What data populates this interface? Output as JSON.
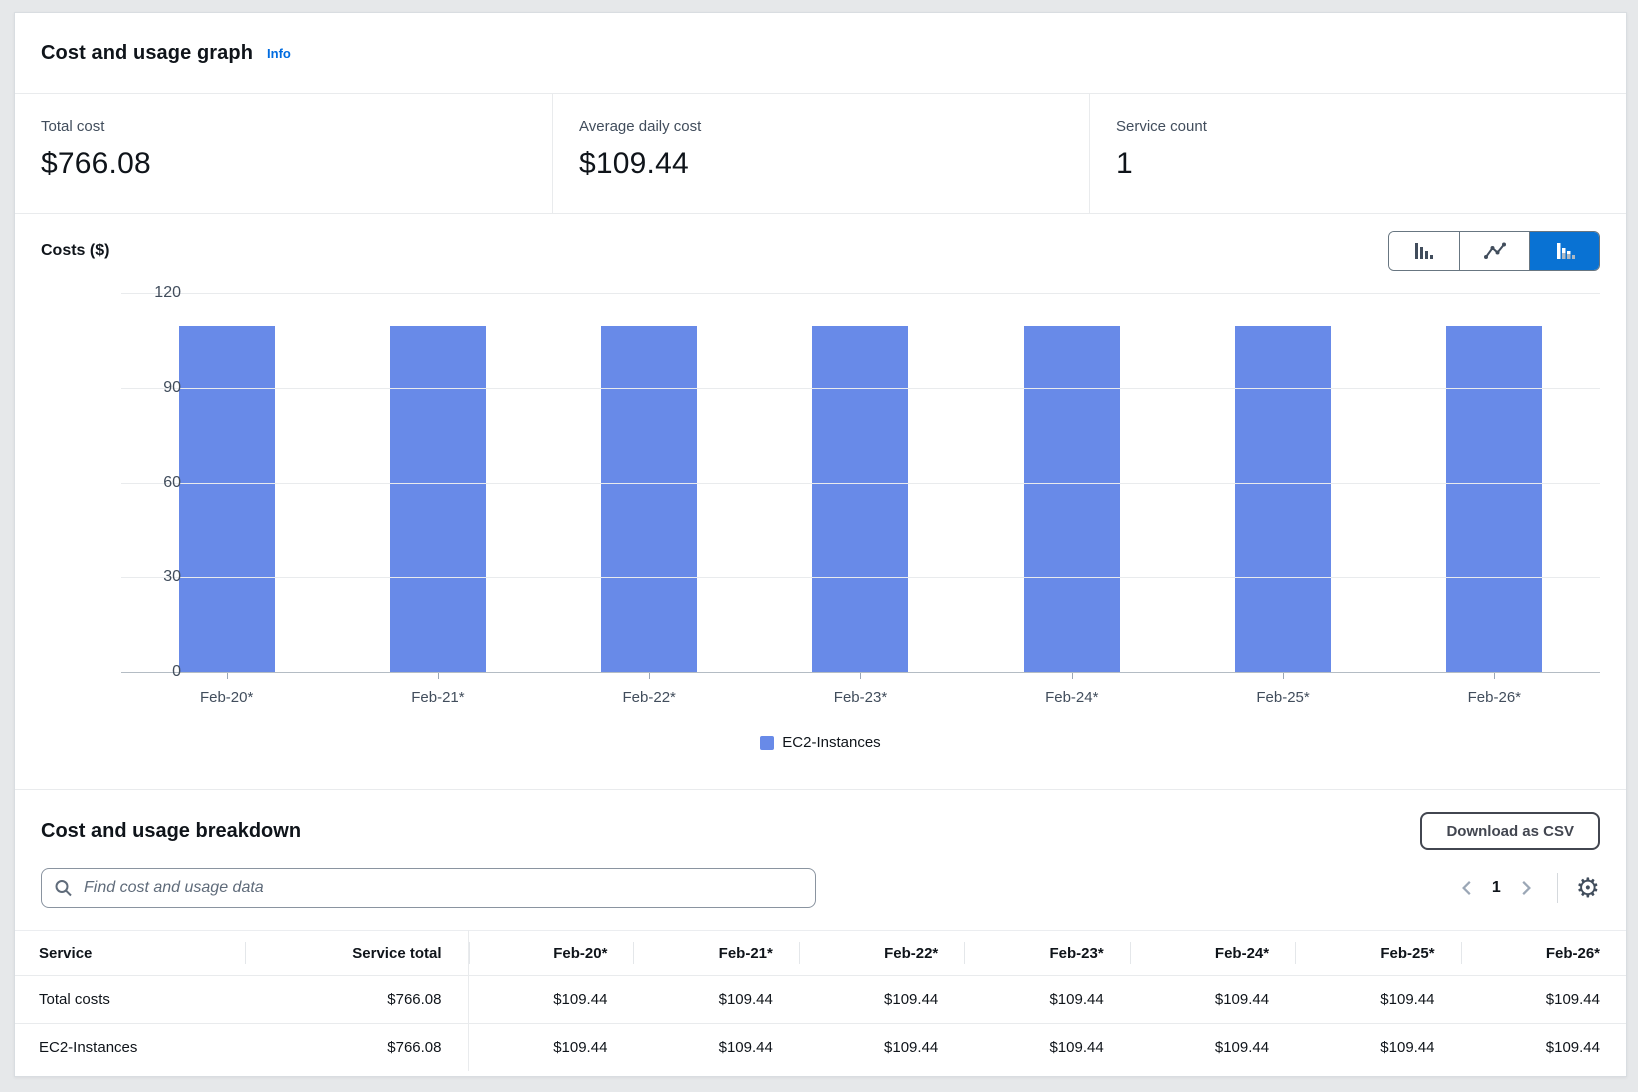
{
  "summary": {
    "title": "Cost and usage graph",
    "info_label": "Info",
    "stats": [
      {
        "label": "Total cost",
        "value": "$766.08"
      },
      {
        "label": "Average daily cost",
        "value": "$109.44"
      },
      {
        "label": "Service count",
        "value": "1"
      }
    ]
  },
  "chart_data": {
    "type": "bar",
    "title": "Costs ($)",
    "categories": [
      "Feb-20*",
      "Feb-21*",
      "Feb-22*",
      "Feb-23*",
      "Feb-24*",
      "Feb-25*",
      "Feb-26*"
    ],
    "series": [
      {
        "name": "EC2-Instances",
        "color": "#688AE8",
        "values": [
          109.44,
          109.44,
          109.44,
          109.44,
          109.44,
          109.44,
          109.44
        ]
      }
    ],
    "ylabel": "Costs ($)",
    "ylim": [
      0,
      120
    ],
    "yticks": [
      120,
      90,
      60,
      30,
      0
    ],
    "grid": true,
    "legend_position": "bottom"
  },
  "chart_toggle": {
    "options": [
      "bar-chart",
      "line-chart",
      "stacked-bar-chart"
    ],
    "selected": "stacked-bar-chart",
    "selected_color": "#0972d3"
  },
  "breakdown": {
    "title": "Cost and usage breakdown",
    "download_label": "Download as CSV",
    "search_placeholder": "Find cost and usage data",
    "pagination": {
      "current_page": "1"
    },
    "table": {
      "columns": [
        "Service",
        "Service total",
        "Feb-20*",
        "Feb-21*",
        "Feb-22*",
        "Feb-23*",
        "Feb-24*",
        "Feb-25*",
        "Feb-26*"
      ],
      "rows": [
        [
          "Total costs",
          "$766.08",
          "$109.44",
          "$109.44",
          "$109.44",
          "$109.44",
          "$109.44",
          "$109.44",
          "$109.44"
        ],
        [
          "EC2-Instances",
          "$766.08",
          "$109.44",
          "$109.44",
          "$109.44",
          "$109.44",
          "$109.44",
          "$109.44",
          "$109.44"
        ]
      ]
    }
  },
  "colors": {
    "bar_blue": "#688AE8",
    "accent_blue": "#0972d3",
    "link_blue": "#006ce0"
  }
}
